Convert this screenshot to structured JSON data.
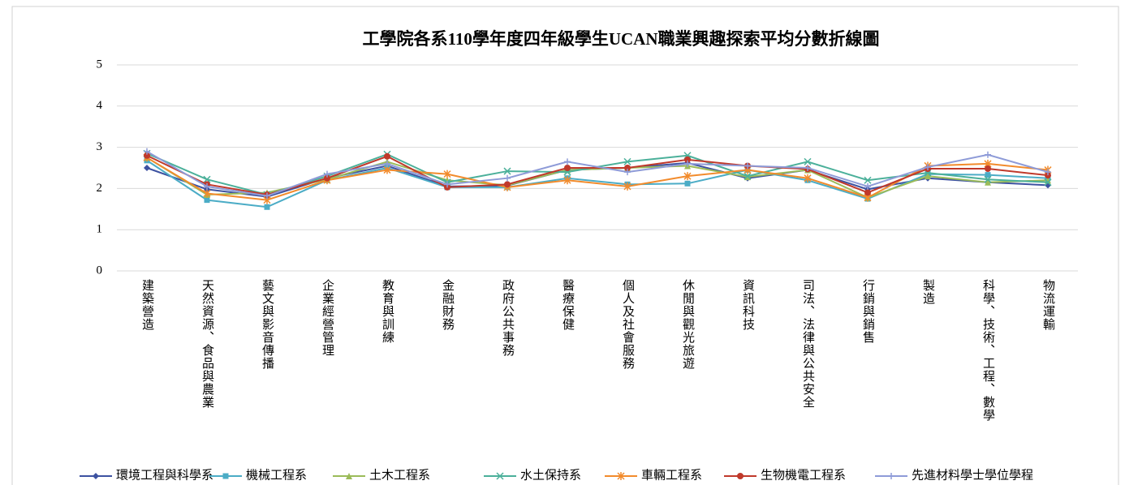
{
  "chart_data": {
    "type": "line",
    "title": "工學院各系110學年度四年級學生UCAN職業興趣探索平均分數折線圖",
    "categories": [
      "建築營造",
      "天然資源、食品與農業",
      "藝文與影音傳播",
      "企業經營管理",
      "教育與訓練",
      "金融財務",
      "政府公共事務",
      "醫療保健",
      "個人及社會服務",
      "休閒與觀光旅遊",
      "資訊科技",
      "司法、法律與公共安全",
      "行銷與銷售",
      "製造",
      "科學、技術、工程、數學",
      "物流運輸"
    ],
    "ylim": [
      0,
      5
    ],
    "yticks": [
      0,
      1,
      2,
      3,
      4,
      5
    ],
    "grid": true,
    "series": [
      {
        "name": "環境工程與科學系",
        "color": "#3d52a1",
        "marker": "diamond",
        "values": [
          2.5,
          1.98,
          1.8,
          2.25,
          2.55,
          2.05,
          2.07,
          2.45,
          2.5,
          2.62,
          2.25,
          2.45,
          1.98,
          2.25,
          2.15,
          2.08
        ]
      },
      {
        "name": "機械工程系",
        "color": "#4bacc6",
        "marker": "square",
        "values": [
          2.68,
          1.72,
          1.55,
          2.2,
          2.5,
          2.03,
          2.03,
          2.25,
          2.1,
          2.12,
          2.45,
          2.2,
          1.75,
          2.35,
          2.33,
          2.25
        ]
      },
      {
        "name": "土木工程系",
        "color": "#9bbb59",
        "marker": "triangle",
        "values": [
          2.75,
          1.85,
          1.9,
          2.22,
          2.65,
          2.2,
          2.08,
          2.45,
          2.5,
          2.55,
          2.28,
          2.45,
          1.78,
          2.3,
          2.15,
          2.2
        ]
      },
      {
        "name": "水土保持系",
        "color": "#4bb09a",
        "marker": "x",
        "values": [
          2.85,
          2.22,
          1.85,
          2.3,
          2.83,
          2.15,
          2.42,
          2.4,
          2.65,
          2.8,
          2.3,
          2.65,
          2.2,
          2.38,
          2.22,
          2.15
        ]
      },
      {
        "name": "車輛工程系",
        "color": "#f28b2c",
        "marker": "star",
        "values": [
          2.75,
          1.88,
          1.72,
          2.2,
          2.45,
          2.35,
          2.03,
          2.2,
          2.05,
          2.3,
          2.45,
          2.25,
          1.78,
          2.55,
          2.6,
          2.45
        ]
      },
      {
        "name": "生物機電工程系",
        "color": "#c0392b",
        "marker": "circle",
        "values": [
          2.8,
          2.1,
          1.85,
          2.25,
          2.78,
          2.03,
          2.1,
          2.5,
          2.5,
          2.7,
          2.55,
          2.47,
          1.9,
          2.48,
          2.48,
          2.32
        ]
      },
      {
        "name": "先進材料學士學位學程",
        "color": "#8e9bd8",
        "marker": "plus",
        "values": [
          2.9,
          2.05,
          1.82,
          2.35,
          2.6,
          2.1,
          2.25,
          2.65,
          2.4,
          2.6,
          2.55,
          2.5,
          2.05,
          2.52,
          2.82,
          2.4
        ]
      }
    ]
  }
}
